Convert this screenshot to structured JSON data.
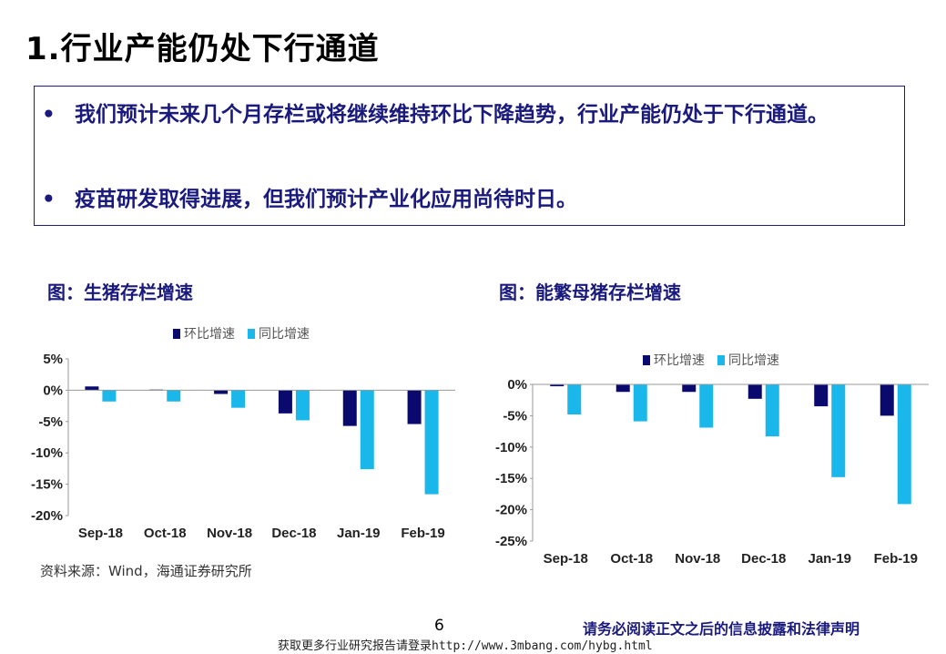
{
  "page": {
    "title": "1.行业产能仍处下行通道",
    "bullets": [
      "我们预计未来几个月存栏或将继续维持环比下降趋势，行业产能仍处于下行通道。",
      "疫苗研发取得进展，但我们预计产业化应用尚待时日。"
    ],
    "bullet_symbol": "•",
    "source": "资料来源：Wind，海通证券研究所",
    "page_number": "6",
    "disclaimer": "请务必阅读正文之后的信息披露和法律声明",
    "footer_link": "获取更多行业研究报告请登录http://www.3mbang.com/hybg.html"
  },
  "colors": {
    "mom": "#0a0a6e",
    "yoy": "#1ab7ea",
    "title": "#1a1a7e"
  },
  "chart_data": [
    {
      "type": "bar",
      "title": "图：生猪存栏增速",
      "categories": [
        "Sep-18",
        "Oct-18",
        "Nov-18",
        "Dec-18",
        "Jan-19",
        "Feb-19"
      ],
      "series": [
        {
          "name": "环比增速",
          "values": [
            0.6,
            0.1,
            -0.6,
            -3.7,
            -5.7,
            -5.4
          ]
        },
        {
          "name": "同比增速",
          "values": [
            -1.8,
            -1.8,
            -2.8,
            -4.8,
            -12.6,
            -16.6
          ]
        }
      ],
      "ylim": [
        -20,
        5
      ],
      "yticks": [
        5,
        0,
        -5,
        -10,
        -15,
        -20
      ],
      "ytick_labels": [
        "5%",
        "0%",
        "-5%",
        "-10%",
        "-15%",
        "-20%"
      ],
      "legend_position": "top"
    },
    {
      "type": "bar",
      "title": "图：能繁母猪存栏增速",
      "categories": [
        "Sep-18",
        "Oct-18",
        "Nov-18",
        "Dec-18",
        "Jan-19",
        "Feb-19"
      ],
      "series": [
        {
          "name": "环比增速",
          "values": [
            -0.3,
            -1.2,
            -1.2,
            -2.3,
            -3.5,
            -5.0
          ]
        },
        {
          "name": "同比增速",
          "values": [
            -4.8,
            -5.9,
            -6.9,
            -8.3,
            -14.8,
            -19.1
          ]
        }
      ],
      "ylim": [
        -25,
        0
      ],
      "yticks": [
        0,
        -5,
        -10,
        -15,
        -20,
        -25
      ],
      "ytick_labels": [
        "0%",
        "-5%",
        "-10%",
        "-15%",
        "-20%",
        "-25%"
      ],
      "legend_position": "top"
    }
  ]
}
